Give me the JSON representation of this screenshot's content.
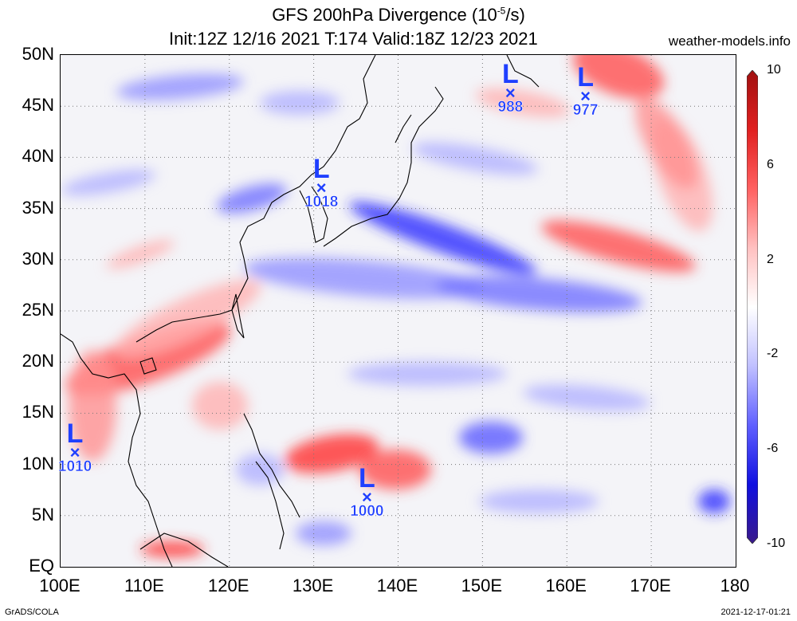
{
  "title_line1": "GFS 200hPa Divergence (10",
  "title_sup": "-5",
  "title_tail": "/s)",
  "title_line2": "Init:12Z 12/16 2021 T:174 Valid:18Z 12/23 2021",
  "site": "weather-models.info",
  "lat_labels": [
    "50N",
    "45N",
    "40N",
    "35N",
    "30N",
    "25N",
    "20N",
    "15N",
    "10N",
    "5N",
    "EQ"
  ],
  "lon_labels": [
    "100E",
    "110E",
    "120E",
    "130E",
    "140E",
    "150E",
    "160E",
    "170E",
    "180"
  ],
  "colorbar": {
    "labels": [
      "10",
      "6",
      "2",
      "-2",
      "-6",
      "-10"
    ],
    "colors": [
      "#a01010",
      "#e02020",
      "#ff6060",
      "#ffc0c0",
      "#ffffff",
      "#c0c0ff",
      "#6060ff",
      "#1010e0",
      "#3a1a8a"
    ]
  },
  "lows": [
    {
      "label": "L",
      "value": "988",
      "lon": 153.4,
      "lat": 46.1
    },
    {
      "label": "L",
      "value": "977",
      "lon": 162.3,
      "lat": 45.8
    },
    {
      "label": "L",
      "value": "1018",
      "lon": 131.0,
      "lat": 36.8
    },
    {
      "label": "L",
      "value": "1010",
      "lon": 101.8,
      "lat": 11.0
    },
    {
      "label": "L",
      "value": "1000",
      "lon": 136.4,
      "lat": 6.6
    }
  ],
  "footer_left": "GrADS/COLA",
  "footer_right": "2021-12-17-01:21"
}
